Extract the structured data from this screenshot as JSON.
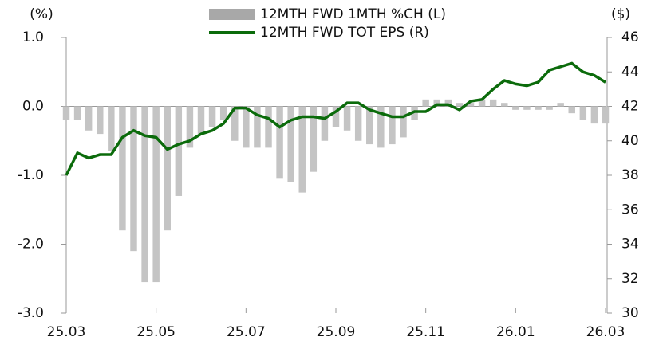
{
  "chart_data": {
    "type": "bar-line",
    "y_label": "(%)",
    "y2_label": "($)",
    "categories": [
      "25.03",
      null,
      null,
      null,
      null,
      null,
      null,
      null,
      "25.05",
      null,
      null,
      null,
      null,
      null,
      null,
      null,
      "25.07",
      null,
      null,
      null,
      null,
      null,
      null,
      null,
      "25.09",
      null,
      null,
      null,
      null,
      null,
      null,
      null,
      "25.11",
      null,
      null,
      null,
      null,
      null,
      null,
      null,
      "26.01",
      null,
      null,
      null,
      null,
      null,
      null,
      null,
      "26.03"
    ],
    "series": [
      {
        "name": "12MTH FWD 1MTH %CH (L)",
        "type": "bar",
        "axis": "y",
        "color": "#c4c4c4",
        "legend_color": "#a8a8a8",
        "values": [
          -0.2,
          -0.2,
          -0.35,
          -0.4,
          -0.65,
          -1.8,
          -2.1,
          -2.55,
          -2.55,
          -1.8,
          -1.3,
          -0.6,
          -0.4,
          -0.3,
          -0.2,
          -0.5,
          -0.6,
          -0.6,
          -0.6,
          -1.05,
          -1.1,
          -1.25,
          -0.95,
          -0.5,
          -0.3,
          -0.35,
          -0.5,
          -0.55,
          -0.6,
          -0.55,
          -0.45,
          -0.2,
          0.1,
          0.1,
          0.1,
          0.05,
          0.05,
          0.1,
          0.1,
          0.05,
          -0.05,
          -0.05,
          -0.05,
          -0.05,
          0.05,
          -0.1,
          -0.2,
          -0.25,
          -0.25
        ]
      },
      {
        "name": "12MTH FWD TOT EPS (R)",
        "type": "line",
        "axis": "y2",
        "color": "#0b6b0b",
        "values": [
          38.0,
          39.3,
          39.0,
          39.2,
          39.2,
          40.2,
          40.6,
          40.3,
          40.2,
          39.5,
          39.8,
          40.0,
          40.4,
          40.6,
          41.0,
          41.9,
          41.9,
          41.5,
          41.3,
          40.8,
          41.2,
          41.4,
          41.4,
          41.3,
          41.7,
          42.2,
          42.2,
          41.8,
          41.6,
          41.4,
          41.4,
          41.7,
          41.7,
          42.1,
          42.1,
          41.8,
          42.3,
          42.4,
          43.0,
          43.5,
          43.3,
          43.2,
          43.4,
          44.1,
          44.3,
          44.5,
          44.0,
          43.8,
          43.4
        ]
      }
    ],
    "ylim": [
      -3,
      1
    ],
    "yticks": [
      {
        "value": -3,
        "label": "-3.0"
      },
      {
        "value": -2,
        "label": "-2.0"
      },
      {
        "value": -1,
        "label": "-1.0"
      },
      {
        "value": 0,
        "label": "0.0"
      },
      {
        "value": 1,
        "label": "1.0"
      }
    ],
    "negative_tick_color": "#e0202a",
    "y2lim": [
      30,
      46
    ],
    "y2ticks": [
      30,
      32,
      34,
      36,
      38,
      40,
      42,
      44,
      46
    ],
    "legend": "top"
  }
}
